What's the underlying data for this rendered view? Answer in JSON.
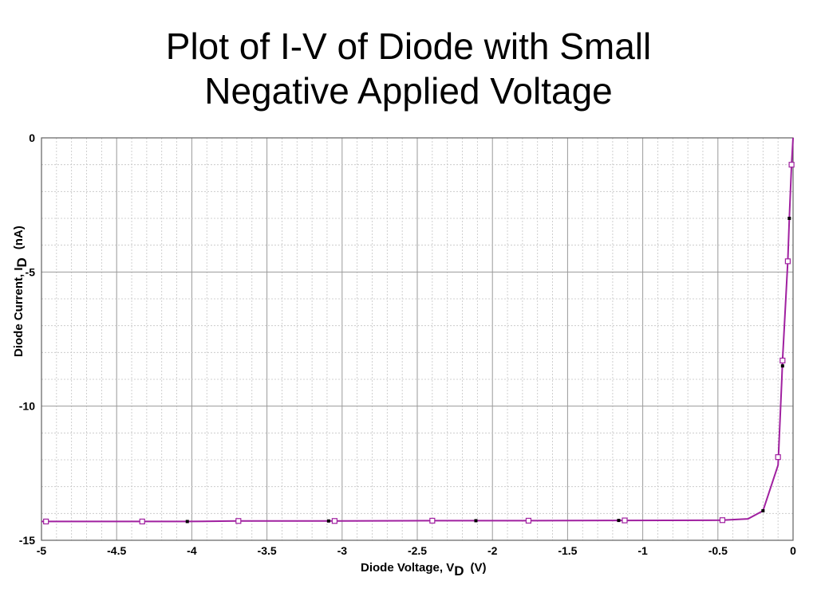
{
  "slide": {
    "title_line1": "Plot of I-V of Diode with Small",
    "title_line2": "Negative Applied Voltage"
  },
  "chart_data": {
    "type": "line",
    "title": "",
    "xlabel": {
      "main": "Diode Voltage, V",
      "sub": "D",
      "unit": "(V)"
    },
    "ylabel": {
      "main": "Diode Current, I",
      "sub": "D",
      "unit": "(nA)"
    },
    "xlim": [
      -5,
      0
    ],
    "ylim": [
      -15,
      0
    ],
    "x_ticks": [
      -5,
      -4.5,
      -4,
      -3.5,
      -3,
      -2.5,
      -2,
      -1.5,
      -1,
      -0.5,
      0
    ],
    "x_tick_labels": [
      "-5",
      "-4.5",
      "-4",
      "-3.5",
      "-3",
      "-2.5",
      "-2",
      "-1.5",
      "-1",
      "-0.5",
      "0"
    ],
    "y_ticks": [
      0,
      -5,
      -10,
      -15
    ],
    "y_tick_labels": [
      "0",
      "-5",
      "-10",
      "-15"
    ],
    "grid": true,
    "line_color": "#a020a0",
    "series": [
      {
        "x": [
          -5,
          -4.7,
          -4.35,
          -4.03,
          -3.7,
          -3.07,
          -3.03,
          -2.4,
          -2.1,
          -1.77,
          -1.15,
          -1.12,
          -0.47,
          -0.3,
          -0.2,
          -0.1,
          -0.075,
          -0.07,
          -0.035,
          -0.025,
          -0.01,
          0
        ],
        "y": [
          -14.3,
          -14.3,
          -14.3,
          -14.3,
          -14.28,
          -14.28,
          -14.28,
          -14.27,
          -14.27,
          -14.27,
          -14.26,
          -14.26,
          -14.25,
          -14.2,
          -13.9,
          -12.2,
          -9.0,
          -8.3,
          -4.6,
          -3.0,
          -1.0,
          0
        ]
      }
    ],
    "markers": {
      "hollow": {
        "color": "#a020a0",
        "x": [
          -4.97,
          -4.33,
          -3.69,
          -3.05,
          -2.4,
          -1.76,
          -1.12,
          -0.47,
          -0.1,
          -0.07,
          -0.035,
          -0.01
        ],
        "y": [
          -14.3,
          -14.3,
          -14.28,
          -14.28,
          -14.27,
          -14.27,
          -14.26,
          -14.25,
          -11.9,
          -8.3,
          -4.6,
          -1.0
        ]
      },
      "filled": {
        "color": "#000000",
        "x": [
          -4.03,
          -3.09,
          -2.11,
          -1.16,
          -0.2,
          -0.07,
          -0.025
        ],
        "y": [
          -14.3,
          -14.28,
          -14.27,
          -14.26,
          -13.9,
          -8.5,
          -3.0
        ]
      }
    }
  }
}
